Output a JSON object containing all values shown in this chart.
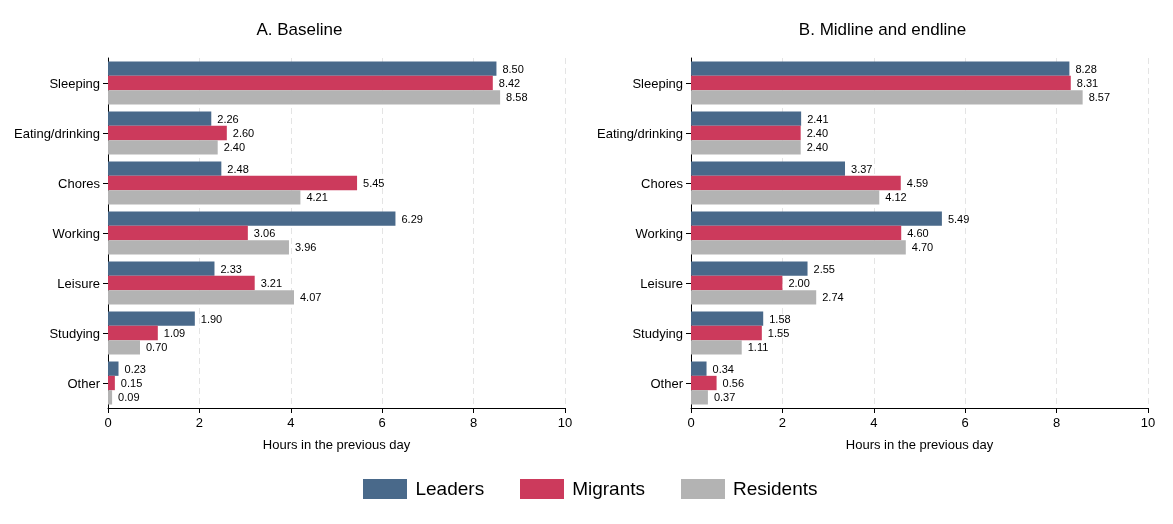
{
  "chart_data": [
    {
      "type": "bar",
      "orientation": "horizontal",
      "title": "A. Baseline",
      "xlabel": "Hours in the previous day",
      "categories": [
        "Sleeping",
        "Eating/drinking",
        "Chores",
        "Working",
        "Leisure",
        "Studying",
        "Other"
      ],
      "series": [
        {
          "name": "Leaders",
          "color": "#49698a",
          "values": [
            8.5,
            2.26,
            2.48,
            6.29,
            2.33,
            1.9,
            0.23
          ],
          "value_labels": [
            "8.50",
            "2.26",
            "2.48",
            "6.29",
            "2.33",
            "1.90",
            "0.23"
          ]
        },
        {
          "name": "Migrants",
          "color": "#cc3a5c",
          "values": [
            8.42,
            2.6,
            5.45,
            3.06,
            3.21,
            1.09,
            0.15
          ],
          "value_labels": [
            "8.42",
            "2.60",
            "5.45",
            "3.06",
            "3.21",
            "1.09",
            "0.15"
          ]
        },
        {
          "name": "Residents",
          "color": "#b3b3b3",
          "values": [
            8.58,
            2.4,
            4.21,
            3.96,
            4.07,
            0.7,
            0.09
          ],
          "value_labels": [
            "8.58",
            "2.40",
            "4.21",
            "3.96",
            "4.07",
            "0.70",
            "0.09"
          ]
        }
      ],
      "xlim": [
        0,
        10
      ],
      "xticks": [
        0,
        2,
        4,
        6,
        8,
        10
      ],
      "grid": "x",
      "legend": "bottom"
    },
    {
      "type": "bar",
      "orientation": "horizontal",
      "title": "B. Midline and endline",
      "xlabel": "Hours in the previous day",
      "categories": [
        "Sleeping",
        "Eating/drinking",
        "Chores",
        "Working",
        "Leisure",
        "Studying",
        "Other"
      ],
      "series": [
        {
          "name": "Leaders",
          "color": "#49698a",
          "values": [
            8.28,
            2.41,
            3.37,
            5.49,
            2.55,
            1.58,
            0.34
          ],
          "value_labels": [
            "8.28",
            "2.41",
            "3.37",
            "5.49",
            "2.55",
            "1.58",
            "0.34"
          ]
        },
        {
          "name": "Migrants",
          "color": "#cc3a5c",
          "values": [
            8.31,
            2.4,
            4.59,
            4.6,
            2.0,
            1.55,
            0.56
          ],
          "value_labels": [
            "8.31",
            "2.40",
            "4.59",
            "4.60",
            "2.00",
            "1.55",
            "0.56"
          ]
        },
        {
          "name": "Residents",
          "color": "#b3b3b3",
          "values": [
            8.57,
            2.4,
            4.12,
            4.7,
            2.74,
            1.11,
            0.37
          ],
          "value_labels": [
            "8.57",
            "2.40",
            "4.12",
            "4.70",
            "2.74",
            "1.11",
            "0.37"
          ]
        }
      ],
      "xlim": [
        0,
        10
      ],
      "xticks": [
        0,
        2,
        4,
        6,
        8,
        10
      ],
      "grid": "x"
    }
  ]
}
